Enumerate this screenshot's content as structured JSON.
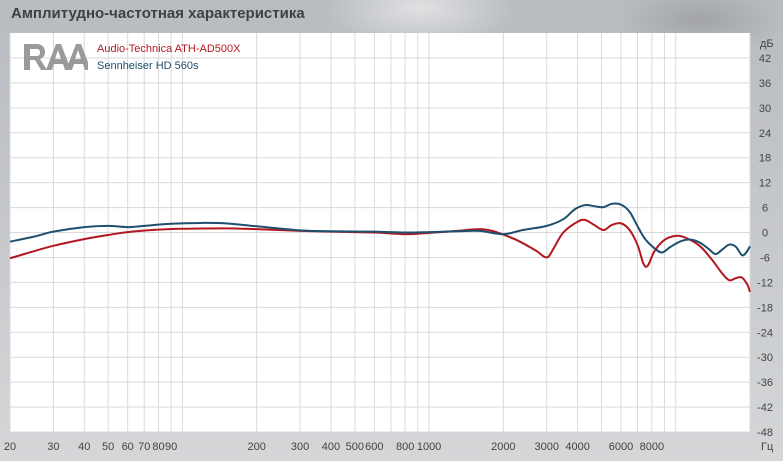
{
  "title": "Амплитудно-частотная характеристика",
  "logo_text": "RAA",
  "colors": {
    "series1": "#b3181f",
    "series2": "#1f4e6e",
    "grid": "#d9d9d9"
  },
  "chart_data": {
    "type": "line",
    "xscale": "log",
    "xlim": [
      20,
      20000
    ],
    "ylim": [
      -48,
      48
    ],
    "y_unit": "дБ",
    "x_unit": "Гц",
    "yticks": [
      42,
      36,
      30,
      24,
      18,
      12,
      6,
      0,
      -6,
      -12,
      -18,
      -24,
      -30,
      -36,
      -42,
      -48
    ],
    "xticks": [
      {
        "v": 20,
        "label": "20"
      },
      {
        "v": 30,
        "label": "30"
      },
      {
        "v": 40,
        "label": "40"
      },
      {
        "v": 50,
        "label": "50"
      },
      {
        "v": 60,
        "label": "60"
      },
      {
        "v": 70,
        "label": "70"
      },
      {
        "v": 80,
        "label": "80"
      },
      {
        "v": 90,
        "label": "90"
      },
      {
        "v": 200,
        "label": "200"
      },
      {
        "v": 300,
        "label": "300"
      },
      {
        "v": 400,
        "label": "400"
      },
      {
        "v": 500,
        "label": "500"
      },
      {
        "v": 600,
        "label": "600"
      },
      {
        "v": 800,
        "label": "800"
      },
      {
        "v": 1000,
        "label": "1000"
      },
      {
        "v": 2000,
        "label": "2000"
      },
      {
        "v": 3000,
        "label": "3000"
      },
      {
        "v": 4000,
        "label": "4000"
      },
      {
        "v": 6000,
        "label": "6000"
      },
      {
        "v": 8000,
        "label": "8000"
      }
    ],
    "grid": true,
    "legend_position": "top-left",
    "series": [
      {
        "name": "Audio-Technica ATH-AD500X",
        "color": "#b3181f",
        "points": [
          [
            20,
            -6.2
          ],
          [
            25,
            -4.5
          ],
          [
            30,
            -3.2
          ],
          [
            40,
            -1.6
          ],
          [
            50,
            -0.6
          ],
          [
            60,
            0.1
          ],
          [
            80,
            0.7
          ],
          [
            100,
            0.9
          ],
          [
            150,
            1.0
          ],
          [
            200,
            0.8
          ],
          [
            300,
            0.4
          ],
          [
            400,
            0.2
          ],
          [
            600,
            0.0
          ],
          [
            800,
            -0.4
          ],
          [
            1000,
            -0.1
          ],
          [
            1300,
            0.4
          ],
          [
            1600,
            0.8
          ],
          [
            1800,
            0.4
          ],
          [
            2000,
            -0.5
          ],
          [
            2300,
            -2.0
          ],
          [
            2700,
            -4.3
          ],
          [
            3000,
            -6.0
          ],
          [
            3200,
            -3.8
          ],
          [
            3500,
            0.0
          ],
          [
            4000,
            2.6
          ],
          [
            4300,
            3.0
          ],
          [
            4700,
            1.7
          ],
          [
            5100,
            0.6
          ],
          [
            5500,
            1.8
          ],
          [
            6000,
            2.2
          ],
          [
            6500,
            0.6
          ],
          [
            7000,
            -3.0
          ],
          [
            7400,
            -7.5
          ],
          [
            7700,
            -8.0
          ],
          [
            8200,
            -4.5
          ],
          [
            9000,
            -1.8
          ],
          [
            10000,
            -0.8
          ],
          [
            11000,
            -1.3
          ],
          [
            12500,
            -3.2
          ],
          [
            14000,
            -6.5
          ],
          [
            15500,
            -10.0
          ],
          [
            16500,
            -11.5
          ],
          [
            17500,
            -11.0
          ],
          [
            18500,
            -10.8
          ],
          [
            19500,
            -12.5
          ],
          [
            20000,
            -14.3
          ]
        ]
      },
      {
        "name": "Sennheiser HD 560s",
        "color": "#1f4e6e",
        "points": [
          [
            20,
            -2.2
          ],
          [
            25,
            -1.0
          ],
          [
            30,
            0.2
          ],
          [
            40,
            1.3
          ],
          [
            50,
            1.6
          ],
          [
            60,
            1.3
          ],
          [
            70,
            1.6
          ],
          [
            90,
            2.1
          ],
          [
            120,
            2.3
          ],
          [
            150,
            2.2
          ],
          [
            200,
            1.5
          ],
          [
            300,
            0.5
          ],
          [
            400,
            0.3
          ],
          [
            600,
            0.2
          ],
          [
            800,
            0.0
          ],
          [
            1000,
            0.1
          ],
          [
            1300,
            0.3
          ],
          [
            1600,
            0.4
          ],
          [
            2000,
            -0.4
          ],
          [
            2400,
            0.6
          ],
          [
            3000,
            1.6
          ],
          [
            3500,
            3.2
          ],
          [
            3900,
            5.6
          ],
          [
            4300,
            6.6
          ],
          [
            4700,
            6.3
          ],
          [
            5100,
            6.1
          ],
          [
            5500,
            6.9
          ],
          [
            6000,
            6.7
          ],
          [
            6500,
            5.0
          ],
          [
            7000,
            1.5
          ],
          [
            7500,
            -1.5
          ],
          [
            8200,
            -3.8
          ],
          [
            8800,
            -4.8
          ],
          [
            9500,
            -3.5
          ],
          [
            10500,
            -2.1
          ],
          [
            11500,
            -1.7
          ],
          [
            12500,
            -2.4
          ],
          [
            13500,
            -3.8
          ],
          [
            14500,
            -5.2
          ],
          [
            15500,
            -4.0
          ],
          [
            16500,
            -2.9
          ],
          [
            17500,
            -3.4
          ],
          [
            18500,
            -5.4
          ],
          [
            19200,
            -5.0
          ],
          [
            20000,
            -3.3
          ]
        ]
      }
    ]
  }
}
